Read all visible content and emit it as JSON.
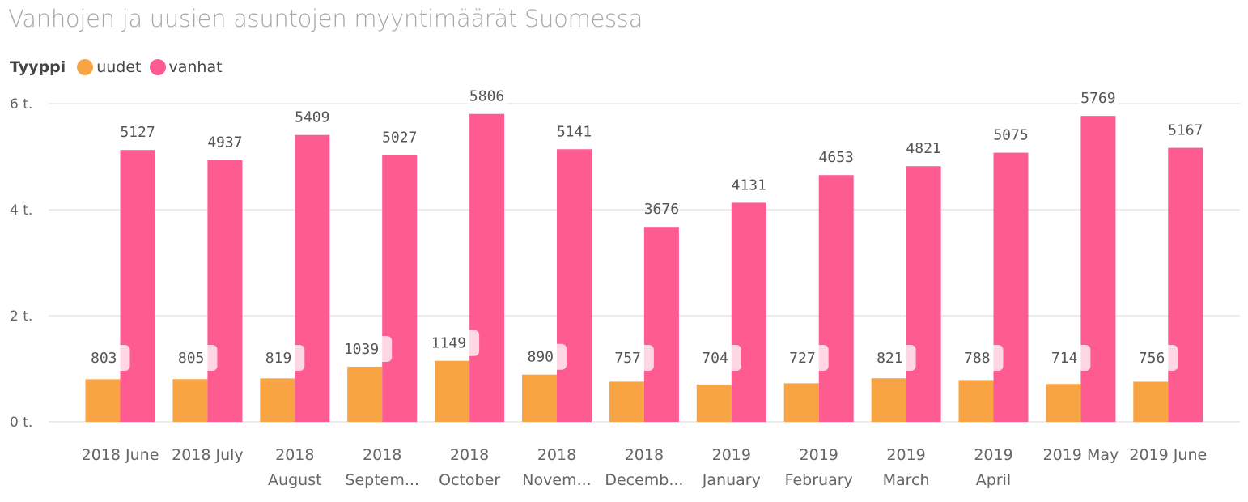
{
  "title": "Vanhojen ja uusien asuntojen myyntimäärät Suomessa",
  "legend": {
    "title": "Tyyppi",
    "items": [
      {
        "label": "uudet",
        "color": "#F8A443"
      },
      {
        "label": "vanhat",
        "color": "#FE5B91"
      }
    ]
  },
  "chart_data": {
    "type": "bar",
    "categories": [
      [
        "2018 June"
      ],
      [
        "2018 July"
      ],
      [
        "2018",
        "August"
      ],
      [
        "2018",
        "Septem..."
      ],
      [
        "2018",
        "October"
      ],
      [
        "2018",
        "Novem..."
      ],
      [
        "2018",
        "Decemb..."
      ],
      [
        "2019",
        "January"
      ],
      [
        "2019",
        "February"
      ],
      [
        "2019",
        "March"
      ],
      [
        "2019",
        "April"
      ],
      [
        "2019 May"
      ],
      [
        "2019 June"
      ]
    ],
    "series": [
      {
        "name": "uudet",
        "color": "#F8A443",
        "values": [
          803,
          805,
          819,
          1039,
          1149,
          890,
          757,
          704,
          727,
          821,
          788,
          714,
          756
        ]
      },
      {
        "name": "vanhat",
        "color": "#FE5B91",
        "values": [
          5127,
          4937,
          5409,
          5027,
          5806,
          5141,
          3676,
          4131,
          4653,
          4821,
          5075,
          5769,
          5167
        ]
      }
    ],
    "yticks": [
      {
        "value": 0,
        "label": "0 t."
      },
      {
        "value": 2000,
        "label": "2 t."
      },
      {
        "value": 4000,
        "label": "4 t."
      },
      {
        "value": 6000,
        "label": "6 t."
      }
    ],
    "ylim": [
      0,
      6000
    ],
    "grid": true,
    "legend_position": "top-left"
  }
}
